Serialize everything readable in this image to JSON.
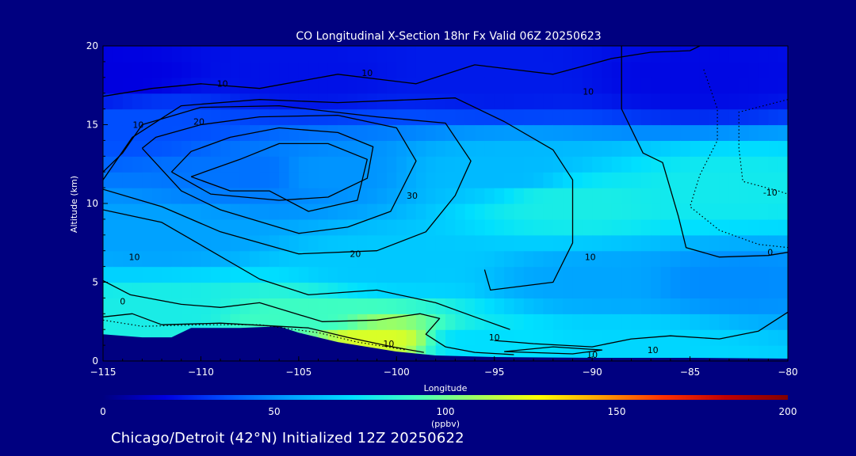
{
  "chart_data": {
    "type": "heatmap",
    "title": "CO Longitudinal X-Section 18hr  Fx Valid 06Z 20250623",
    "xlabel": "Longitude",
    "ylabel": "Altitude (km)",
    "xlim": [
      -115,
      -80
    ],
    "ylim": [
      0,
      20
    ],
    "x_ticks": [
      -115,
      -110,
      -105,
      -100,
      -95,
      -90,
      -85,
      -80
    ],
    "x_tick_labels": [
      "−115",
      "−110",
      "−105",
      "−100",
      "−95",
      "−90",
      "−85",
      "−80"
    ],
    "y_ticks": [
      0,
      5,
      10,
      15,
      20
    ],
    "y_tick_labels": [
      "0",
      "5",
      "10",
      "15",
      "20"
    ],
    "grid": "0.5 deg x 1 km field grid",
    "colorbar": {
      "range": [
        0,
        200
      ],
      "ticks": [
        0,
        50,
        100,
        150,
        200
      ],
      "tick_labels": [
        "0",
        "50",
        "100",
        "150",
        "200"
      ],
      "unit": "(ppbv)",
      "colors": [
        "#000080",
        "#0000e0",
        "#0050ff",
        "#00a0ff",
        "#00e0ff",
        "#40ffc0",
        "#a0ff60",
        "#ffff00",
        "#ffa000",
        "#ff3000",
        "#c00000",
        "#800000"
      ]
    },
    "field_points": [
      {
        "lon": -115,
        "alt": 18,
        "co": 18
      },
      {
        "lon": -105,
        "alt": 18,
        "co": 22
      },
      {
        "lon": -95,
        "alt": 18,
        "co": 24
      },
      {
        "lon": -85,
        "alt": 18,
        "co": 20
      },
      {
        "lon": -113,
        "alt": 15,
        "co": 36
      },
      {
        "lon": -107,
        "alt": 12,
        "co": 44
      },
      {
        "lon": -104,
        "alt": 12,
        "co": 52
      },
      {
        "lon": -95,
        "alt": 12,
        "co": 62
      },
      {
        "lon": -91,
        "alt": 10,
        "co": 80
      },
      {
        "lon": -83,
        "alt": 11,
        "co": 78
      },
      {
        "lon": -112,
        "alt": 8,
        "co": 55
      },
      {
        "lon": -100,
        "alt": 6,
        "co": 66
      },
      {
        "lon": -90,
        "alt": 5,
        "co": 56
      },
      {
        "lon": -83,
        "alt": 5,
        "co": 50
      },
      {
        "lon": -112,
        "alt": 3,
        "co": 80
      },
      {
        "lon": -105,
        "alt": 2.5,
        "co": 90
      },
      {
        "lon": -101,
        "alt": 1.2,
        "co": 120
      },
      {
        "lon": -96,
        "alt": 1,
        "co": 72
      },
      {
        "lon": -88,
        "alt": 1,
        "co": 70
      }
    ],
    "terrain": [
      {
        "lon": -115,
        "alt": 1.7
      },
      {
        "lon": -113,
        "alt": 1.5
      },
      {
        "lon": -111.5,
        "alt": 1.5
      },
      {
        "lon": -110.5,
        "alt": 2.1
      },
      {
        "lon": -108,
        "alt": 2.1
      },
      {
        "lon": -106,
        "alt": 2.2
      },
      {
        "lon": -105,
        "alt": 1.8
      },
      {
        "lon": -103,
        "alt": 1.2
      },
      {
        "lon": -100,
        "alt": 0.6
      },
      {
        "lon": -98,
        "alt": 0.35
      },
      {
        "lon": -95,
        "alt": 0.25
      },
      {
        "lon": -90,
        "alt": 0.2
      },
      {
        "lon": -85,
        "alt": 0.2
      },
      {
        "lon": -80,
        "alt": 0.15
      }
    ],
    "contours": [
      {
        "value": 10,
        "style": "solid",
        "points": [
          [
            -115,
            16.8
          ],
          [
            -112.5,
            17.3
          ],
          [
            -110,
            17.6
          ],
          [
            -107,
            17.3
          ],
          [
            -103,
            18.2
          ],
          [
            -99,
            17.6
          ],
          [
            -96,
            18.8
          ],
          [
            -92,
            18.2
          ],
          [
            -89,
            19.2
          ],
          [
            -87,
            19.6
          ],
          [
            -85,
            19.7
          ],
          [
            -84.5,
            20
          ]
        ]
      },
      {
        "value": 10,
        "style": "solid",
        "points": [
          [
            -115,
            11.5
          ],
          [
            -113.5,
            14.2
          ],
          [
            -111,
            16.2
          ],
          [
            -107,
            16.6
          ],
          [
            -103,
            16.4
          ],
          [
            -99,
            16.6
          ],
          [
            -97,
            16.7
          ],
          [
            -94.5,
            15.2
          ],
          [
            -92,
            13.4
          ],
          [
            -91,
            11.5
          ],
          [
            -91,
            7.5
          ],
          [
            -92,
            5
          ],
          [
            -95.2,
            4.5
          ],
          [
            -95.5,
            5.8
          ]
        ]
      },
      {
        "value": 10,
        "style": "solid",
        "points": [
          [
            -115,
            9.6
          ],
          [
            -112,
            8.8
          ],
          [
            -109.5,
            7
          ],
          [
            -107,
            5.2
          ],
          [
            -104.5,
            4.2
          ],
          [
            -101,
            4.5
          ],
          [
            -98,
            3.7
          ],
          [
            -96,
            2.8
          ],
          [
            -94.2,
            2
          ]
        ]
      },
      {
        "value": 20,
        "style": "solid",
        "points": [
          [
            -115,
            10.9
          ],
          [
            -112,
            9.8
          ],
          [
            -109,
            8.2
          ],
          [
            -105,
            6.8
          ],
          [
            -101,
            7
          ],
          [
            -98.5,
            8.2
          ],
          [
            -97,
            10.5
          ],
          [
            -96.2,
            12.7
          ],
          [
            -97.5,
            15.1
          ],
          [
            -101,
            15.5
          ],
          [
            -106,
            16.2
          ],
          [
            -110,
            16.1
          ],
          [
            -113,
            15
          ],
          [
            -114,
            13.2
          ],
          [
            -115,
            12
          ]
        ]
      },
      {
        "value": 30,
        "style": "solid",
        "points": [
          [
            -113,
            13.5
          ],
          [
            -111,
            10.8
          ],
          [
            -109,
            9.6
          ],
          [
            -105,
            8.1
          ],
          [
            -102.5,
            8.5
          ],
          [
            -100.3,
            9.5
          ],
          [
            -99,
            12.7
          ],
          [
            -100,
            14.8
          ],
          [
            -103,
            15.6
          ],
          [
            -107,
            15.5
          ],
          [
            -110,
            15
          ],
          [
            -112.3,
            14.2
          ],
          [
            -113,
            13.5
          ]
        ]
      },
      {
        "value": 30,
        "style": "solid",
        "points": [
          [
            -111.5,
            12
          ],
          [
            -109.5,
            10.6
          ],
          [
            -106,
            10.2
          ],
          [
            -103.5,
            10.4
          ],
          [
            -101.5,
            11.6
          ],
          [
            -101.2,
            13.6
          ],
          [
            -103,
            14.5
          ],
          [
            -106,
            14.8
          ],
          [
            -108.5,
            14.2
          ],
          [
            -110.5,
            13.3
          ],
          [
            -111.5,
            12
          ]
        ]
      },
      {
        "value": 40,
        "style": "solid",
        "points": [
          [
            -110.5,
            11.7
          ],
          [
            -108.5,
            10.8
          ],
          [
            -106.5,
            10.8
          ],
          [
            -104.5,
            9.5
          ],
          [
            -102,
            10.2
          ],
          [
            -101.5,
            12.8
          ],
          [
            -103.5,
            13.8
          ],
          [
            -106,
            13.8
          ],
          [
            -108,
            12.8
          ],
          [
            -110.5,
            11.7
          ]
        ]
      },
      {
        "value": 10,
        "style": "solid",
        "points": [
          [
            -88.5,
            20
          ],
          [
            -88.5,
            16
          ],
          [
            -87.4,
            13.2
          ],
          [
            -86.4,
            12.6
          ],
          [
            -85.6,
            9.2
          ],
          [
            -85.2,
            7.2
          ],
          [
            -83.5,
            6.6
          ],
          [
            -81,
            6.7
          ],
          [
            -80,
            6.9
          ]
        ]
      },
      {
        "value": 10,
        "style": "solid",
        "points": [
          [
            -115,
            5.1
          ],
          [
            -113.6,
            4.2
          ],
          [
            -111,
            3.6
          ],
          [
            -109,
            3.4
          ],
          [
            -107,
            3.7
          ],
          [
            -103.8,
            2.5
          ],
          [
            -101,
            2.6
          ],
          [
            -98.8,
            3
          ],
          [
            -97.8,
            2.7
          ],
          [
            -98.5,
            1.7
          ],
          [
            -97.5,
            0.9
          ],
          [
            -96,
            0.55
          ],
          [
            -94,
            0.4
          ]
        ]
      },
      {
        "value": 10,
        "style": "solid",
        "points": [
          [
            -94.5,
            0.6
          ],
          [
            -92,
            0.9
          ],
          [
            -89.5,
            0.7
          ],
          [
            -91,
            0.45
          ],
          [
            -94.5,
            0.6
          ]
        ]
      },
      {
        "value": 10,
        "style": "solid",
        "points": [
          [
            -95,
            1.3
          ],
          [
            -93,
            1.1
          ],
          [
            -90,
            0.9
          ],
          [
            -88,
            1.4
          ],
          [
            -86,
            1.6
          ],
          [
            -83.5,
            1.4
          ],
          [
            -81.5,
            1.9
          ],
          [
            -80,
            3.1
          ]
        ]
      },
      {
        "value": 0,
        "style": "solid",
        "points": [
          [
            -115,
            2.8
          ],
          [
            -113.5,
            3
          ],
          [
            -112,
            2.3
          ],
          [
            -109,
            2.4
          ],
          [
            -106,
            2.2
          ],
          [
            -104.5,
            2.1
          ],
          [
            -102.5,
            1.5
          ],
          [
            -100.2,
            0.9
          ],
          [
            -98.6,
            0.55
          ]
        ]
      },
      {
        "value": 0,
        "style": "dotted",
        "points": [
          [
            -115,
            2.6
          ],
          [
            -113,
            2.2
          ],
          [
            -110,
            2.3
          ],
          [
            -107,
            2.3
          ],
          [
            -104,
            1.8
          ],
          [
            -102,
            1.2
          ],
          [
            -99.5,
            0.7
          ]
        ]
      },
      {
        "value": -10,
        "style": "dotted",
        "points": [
          [
            -84.3,
            18.5
          ],
          [
            -83.6,
            16
          ],
          [
            -83.6,
            14
          ],
          [
            -84.5,
            11.8
          ],
          [
            -85,
            9.8
          ],
          [
            -83.5,
            8.3
          ],
          [
            -81.5,
            7.4
          ],
          [
            -80,
            7.2
          ]
        ]
      },
      {
        "value": -10,
        "style": "dotted",
        "points": [
          [
            -80,
            16.6
          ],
          [
            -82.5,
            15.8
          ],
          [
            -82.5,
            13.5
          ],
          [
            -82.3,
            11.4
          ],
          [
            -80.5,
            10.8
          ],
          [
            -80,
            10.6
          ]
        ]
      }
    ],
    "contour_labels": [
      {
        "text": "10",
        "lon": -108.9,
        "alt": 17.4
      },
      {
        "text": "10",
        "lon": -101.5,
        "alt": 18.1
      },
      {
        "text": "10",
        "lon": -90.2,
        "alt": 16.9
      },
      {
        "text": "10",
        "lon": -113.2,
        "alt": 14.8
      },
      {
        "text": "20",
        "lon": -110.1,
        "alt": 15.0
      },
      {
        "text": "30",
        "lon": -99.2,
        "alt": 10.3
      },
      {
        "text": "20",
        "lon": -102.1,
        "alt": 6.6
      },
      {
        "text": "10",
        "lon": -113.4,
        "alt": 6.4
      },
      {
        "text": "10",
        "lon": -90.1,
        "alt": 6.4
      },
      {
        "text": "0",
        "lon": -114.0,
        "alt": 3.6
      },
      {
        "text": "10",
        "lon": -100.4,
        "alt": 0.9
      },
      {
        "text": "10",
        "lon": -95.0,
        "alt": 1.3
      },
      {
        "text": "10",
        "lon": -90.0,
        "alt": 0.2
      },
      {
        "text": "10",
        "lon": -86.9,
        "alt": 0.5
      },
      {
        "text": "0",
        "lon": -80.9,
        "alt": 6.7
      },
      {
        "text": "-10",
        "lon": -80.9,
        "alt": 10.5
      }
    ]
  },
  "footer": {
    "text": "Chicago/Detroit (42°N) Initialized 12Z 20250622"
  }
}
